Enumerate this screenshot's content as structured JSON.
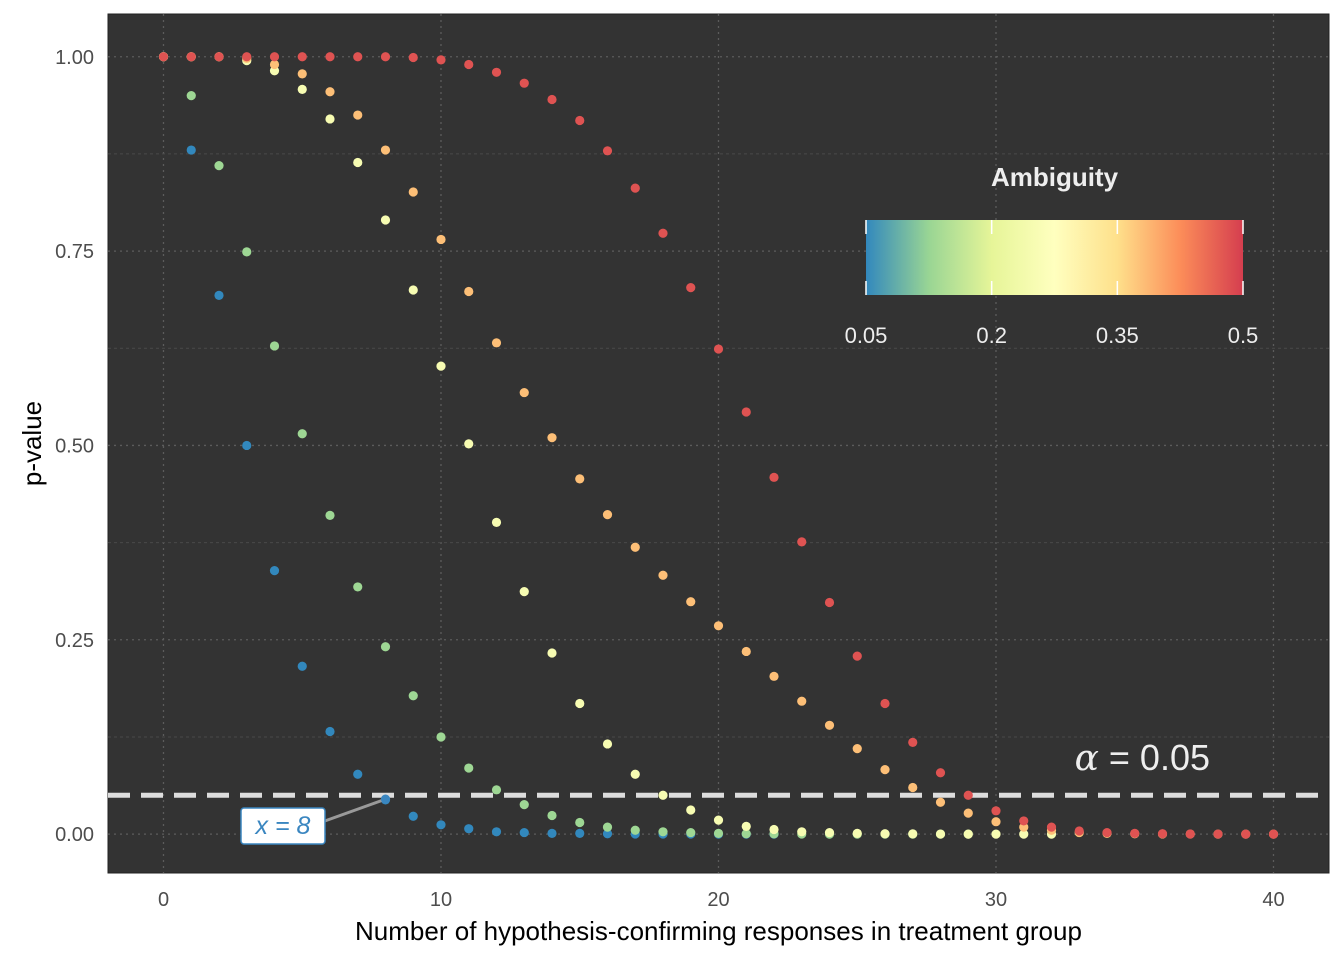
{
  "chart_data": {
    "type": "scatter",
    "xlabel": "Number of hypothesis-confirming responses in treatment group",
    "ylabel": "p-value",
    "xlim": [
      -2,
      42
    ],
    "ylim": [
      -0.05,
      1.055
    ],
    "x_ticks": [
      0,
      10,
      20,
      30,
      40
    ],
    "x_tick_labels": [
      "0",
      "10",
      "20",
      "30",
      "40"
    ],
    "y_ticks": [
      0,
      0.25,
      0.5,
      0.75,
      1.0
    ],
    "y_tick_labels": [
      "0.00",
      "0.25",
      "0.50",
      "0.75",
      "1.00"
    ],
    "grid": true,
    "background": "#333333",
    "legend": {
      "title": "Ambiguity",
      "placement": "top-right",
      "range": [
        0.05,
        0.5
      ],
      "ticks": [
        0.05,
        0.2,
        0.35,
        0.5
      ],
      "tick_labels": [
        "0.05",
        "0.2",
        "0.35",
        "0.5"
      ],
      "palette": [
        "#3288bd",
        "#99d594",
        "#e6f598",
        "#ffffbf",
        "#fee08b",
        "#fc8d59",
        "#d53e4f"
      ]
    },
    "reference_line": {
      "y": 0.05,
      "label_symbol": "α",
      "label_text": " = 0.05",
      "color": "#dddddd"
    },
    "annotation": {
      "text": "x = 8",
      "x": 8,
      "y": 0.045,
      "color": "#3a86c0"
    },
    "series": [
      {
        "ambiguity": 0.05,
        "points": [
          [
            0,
            1.0
          ],
          [
            1,
            0.88
          ],
          [
            2,
            0.693
          ],
          [
            3,
            0.5
          ],
          [
            4,
            0.339
          ],
          [
            5,
            0.216
          ],
          [
            6,
            0.132
          ],
          [
            7,
            0.077
          ],
          [
            8,
            0.044
          ],
          [
            9,
            0.023
          ],
          [
            10,
            0.012
          ],
          [
            11,
            0.007
          ],
          [
            12,
            0.003
          ],
          [
            13,
            0.002
          ],
          [
            14,
            0.001
          ],
          [
            15,
            0.001
          ],
          [
            16,
            0.0005
          ],
          [
            17,
            0.0002
          ],
          [
            18,
            0.0001
          ],
          [
            19,
            0.0001
          ],
          [
            20,
            0.0
          ],
          [
            21,
            0.0
          ],
          [
            22,
            0.0
          ]
        ]
      },
      {
        "ambiguity": 0.13,
        "points": [
          [
            0,
            1.0
          ],
          [
            1,
            0.95
          ],
          [
            2,
            0.86
          ],
          [
            3,
            0.749
          ],
          [
            4,
            0.628
          ],
          [
            5,
            0.515
          ],
          [
            6,
            0.41
          ],
          [
            7,
            0.318
          ],
          [
            8,
            0.241
          ],
          [
            9,
            0.178
          ],
          [
            10,
            0.125
          ],
          [
            11,
            0.085
          ],
          [
            12,
            0.057
          ],
          [
            13,
            0.038
          ],
          [
            14,
            0.024
          ],
          [
            15,
            0.015
          ],
          [
            16,
            0.009
          ],
          [
            17,
            0.005
          ],
          [
            18,
            0.003
          ],
          [
            19,
            0.002
          ],
          [
            20,
            0.001
          ],
          [
            21,
            0.0005
          ],
          [
            22,
            0.0003
          ],
          [
            23,
            0.0001
          ],
          [
            24,
            0.0
          ],
          [
            25,
            0.0
          ],
          [
            26,
            0.0
          ],
          [
            27,
            0.0
          ],
          [
            28,
            0.0
          ],
          [
            29,
            0.0
          ]
        ]
      },
      {
        "ambiguity": 0.25,
        "points": [
          [
            0,
            1.0
          ],
          [
            1,
            1.0
          ],
          [
            2,
            1.0
          ],
          [
            3,
            0.995
          ],
          [
            4,
            0.982
          ],
          [
            5,
            0.958
          ],
          [
            6,
            0.92
          ],
          [
            7,
            0.864
          ],
          [
            8,
            0.79
          ],
          [
            9,
            0.7
          ],
          [
            10,
            0.602
          ],
          [
            11,
            0.502
          ],
          [
            12,
            0.401
          ],
          [
            13,
            0.312
          ],
          [
            14,
            0.233
          ],
          [
            15,
            0.168
          ],
          [
            16,
            0.116
          ],
          [
            17,
            0.077
          ],
          [
            18,
            0.05
          ],
          [
            19,
            0.031
          ],
          [
            20,
            0.018
          ],
          [
            21,
            0.01
          ],
          [
            22,
            0.006
          ],
          [
            23,
            0.003
          ],
          [
            24,
            0.002
          ],
          [
            25,
            0.001
          ],
          [
            26,
            0.0005
          ],
          [
            27,
            0.0003
          ],
          [
            28,
            0.0001
          ],
          [
            29,
            0.0
          ],
          [
            30,
            0.0
          ],
          [
            31,
            0.0
          ],
          [
            32,
            0.0
          ]
        ]
      },
      {
        "ambiguity": 0.38,
        "points": [
          [
            0,
            1.0
          ],
          [
            1,
            1.0
          ],
          [
            2,
            1.0
          ],
          [
            3,
            0.998
          ],
          [
            4,
            0.99
          ],
          [
            5,
            0.978
          ],
          [
            6,
            0.955
          ],
          [
            7,
            0.925
          ],
          [
            8,
            0.88
          ],
          [
            9,
            0.826
          ],
          [
            10,
            0.765
          ],
          [
            11,
            0.698
          ],
          [
            12,
            0.632
          ],
          [
            13,
            0.568
          ],
          [
            14,
            0.51
          ],
          [
            15,
            0.457
          ],
          [
            16,
            0.411
          ],
          [
            17,
            0.369
          ],
          [
            18,
            0.333
          ],
          [
            19,
            0.299
          ],
          [
            20,
            0.268
          ],
          [
            21,
            0.235
          ],
          [
            22,
            0.203
          ],
          [
            23,
            0.171
          ],
          [
            24,
            0.14
          ],
          [
            25,
            0.11
          ],
          [
            26,
            0.083
          ],
          [
            27,
            0.06
          ],
          [
            28,
            0.041
          ],
          [
            29,
            0.027
          ],
          [
            30,
            0.016
          ],
          [
            31,
            0.009
          ],
          [
            32,
            0.005
          ],
          [
            33,
            0.002
          ],
          [
            34,
            0.001
          ],
          [
            35,
            0.0005
          ],
          [
            36,
            0.0002
          ],
          [
            37,
            0.0001
          ],
          [
            38,
            0.0
          ],
          [
            39,
            0.0
          ],
          [
            40,
            0.0
          ]
        ]
      },
      {
        "ambiguity": 0.48,
        "points": [
          [
            0,
            1.0
          ],
          [
            1,
            1.0
          ],
          [
            2,
            1.0
          ],
          [
            3,
            1.0
          ],
          [
            4,
            1.0
          ],
          [
            5,
            1.0
          ],
          [
            6,
            1.0
          ],
          [
            7,
            1.0
          ],
          [
            8,
            1.0
          ],
          [
            9,
            0.999
          ],
          [
            10,
            0.996
          ],
          [
            11,
            0.99
          ],
          [
            12,
            0.98
          ],
          [
            13,
            0.966
          ],
          [
            14,
            0.945
          ],
          [
            15,
            0.918
          ],
          [
            16,
            0.879
          ],
          [
            17,
            0.831
          ],
          [
            18,
            0.773
          ],
          [
            19,
            0.703
          ],
          [
            20,
            0.624
          ],
          [
            21,
            0.543
          ],
          [
            22,
            0.459
          ],
          [
            23,
            0.376
          ],
          [
            24,
            0.298
          ],
          [
            25,
            0.229
          ],
          [
            26,
            0.168
          ],
          [
            27,
            0.118
          ],
          [
            28,
            0.079
          ],
          [
            29,
            0.05
          ],
          [
            30,
            0.03
          ],
          [
            31,
            0.017
          ],
          [
            32,
            0.009
          ],
          [
            33,
            0.004
          ],
          [
            34,
            0.002
          ],
          [
            35,
            0.001
          ],
          [
            36,
            0.0005
          ],
          [
            37,
            0.0002
          ],
          [
            38,
            0.0001
          ],
          [
            39,
            0.0
          ],
          [
            40,
            0.0
          ]
        ]
      }
    ]
  }
}
